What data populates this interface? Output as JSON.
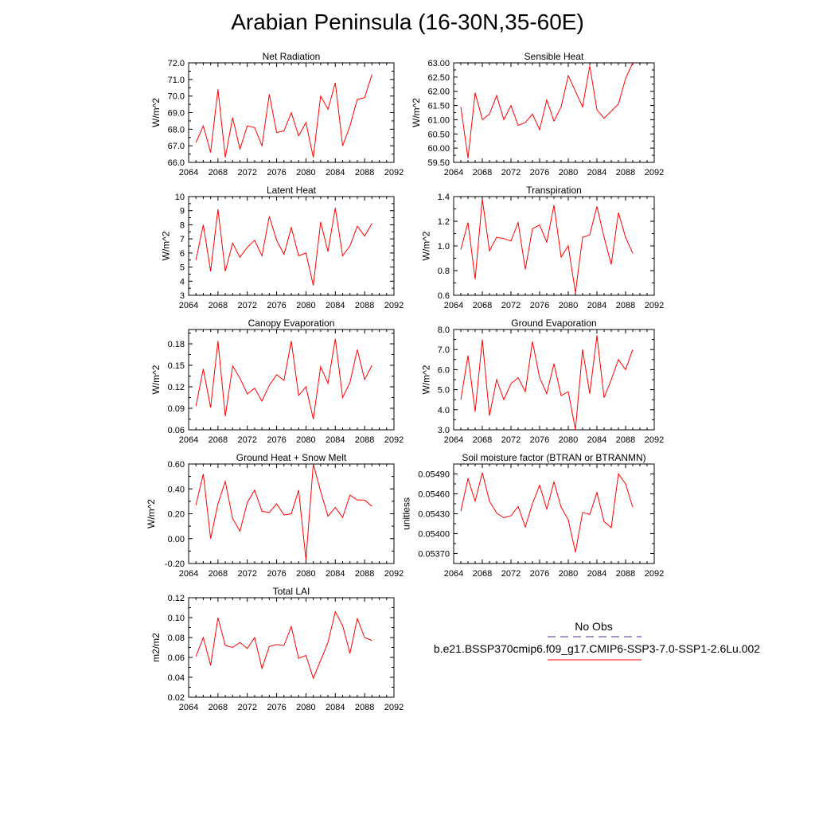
{
  "title": "Arabian Peninsula (16-30N,35-60E)",
  "legend": {
    "obs_label": "No Obs",
    "obs_color": "#3333aa",
    "run_label": "b.e21.BSSP370cmip6.f09_g17.CMIP6-SSP3-7.0-SSP1-2.6Lu.002",
    "run_color": "#ff0000"
  },
  "chart_data": [
    {
      "type": "line",
      "title": "Net Radiation",
      "ylabel": "W/m^2",
      "xlim": [
        2064,
        2092
      ],
      "xticks": [
        "2064",
        "2068",
        "2072",
        "2076",
        "2080",
        "2084",
        "2088",
        "2092"
      ],
      "ylim": [
        66.0,
        72.0
      ],
      "yticks": [
        "66.0",
        "67.0",
        "68.0",
        "69.0",
        "70.0",
        "71.0",
        "72.0"
      ],
      "x": [
        2065,
        2066,
        2067,
        2068,
        2069,
        2070,
        2071,
        2072,
        2073,
        2074,
        2075,
        2076,
        2077,
        2078,
        2079,
        2080,
        2081,
        2082,
        2083,
        2084,
        2085,
        2086,
        2087,
        2088,
        2089
      ],
      "series": [
        {
          "color": "#ff0000",
          "values": [
            67.2,
            68.2,
            66.6,
            70.4,
            66.3,
            68.7,
            66.8,
            68.2,
            68.1,
            67.0,
            70.1,
            67.8,
            67.9,
            69.0,
            67.6,
            68.4,
            66.3,
            70.0,
            69.2,
            70.8,
            67.0,
            68.2,
            69.8,
            69.9,
            71.3
          ]
        }
      ]
    },
    {
      "type": "line",
      "title": "Sensible Heat",
      "ylabel": "W/m^2",
      "xlim": [
        2064,
        2092
      ],
      "xticks": [
        "2064",
        "2068",
        "2072",
        "2076",
        "2080",
        "2084",
        "2088",
        "2092"
      ],
      "ylim": [
        59.5,
        63.0
      ],
      "yticks": [
        "59.50",
        "60.00",
        "60.50",
        "61.00",
        "61.50",
        "62.00",
        "62.50",
        "63.00"
      ],
      "x": [
        2065,
        2066,
        2067,
        2068,
        2069,
        2070,
        2071,
        2072,
        2073,
        2074,
        2075,
        2076,
        2077,
        2078,
        2079,
        2080,
        2081,
        2082,
        2083,
        2084,
        2085,
        2086,
        2087,
        2088,
        2089
      ],
      "series": [
        {
          "color": "#ff0000",
          "values": [
            61.45,
            59.65,
            61.95,
            61.0,
            61.2,
            61.85,
            61.0,
            61.5,
            60.8,
            60.9,
            61.2,
            60.65,
            61.7,
            60.95,
            61.45,
            62.55,
            62.0,
            61.45,
            62.9,
            61.35,
            61.05,
            61.3,
            61.55,
            62.45,
            63.0
          ]
        }
      ]
    },
    {
      "type": "line",
      "title": "Latent Heat",
      "ylabel": "W/m^2",
      "xlim": [
        2064,
        2092
      ],
      "xticks": [
        "2064",
        "2068",
        "2072",
        "2076",
        "2080",
        "2084",
        "2088",
        "2092"
      ],
      "ylim": [
        3,
        10
      ],
      "yticks": [
        "3",
        "4",
        "5",
        "6",
        "7",
        "8",
        "9",
        "10"
      ],
      "x": [
        2065,
        2066,
        2067,
        2068,
        2069,
        2070,
        2071,
        2072,
        2073,
        2074,
        2075,
        2076,
        2077,
        2078,
        2079,
        2080,
        2081,
        2082,
        2083,
        2084,
        2085,
        2086,
        2087,
        2088,
        2089
      ],
      "series": [
        {
          "color": "#ff0000",
          "values": [
            5.5,
            8.0,
            4.7,
            9.1,
            4.7,
            6.7,
            5.7,
            6.4,
            6.9,
            5.8,
            8.6,
            6.9,
            5.9,
            7.8,
            5.8,
            6.0,
            3.7,
            8.2,
            6.1,
            9.2,
            5.8,
            6.5,
            7.9,
            7.2,
            8.1
          ]
        }
      ]
    },
    {
      "type": "line",
      "title": "Transpiration",
      "ylabel": "W/m^2",
      "xlim": [
        2064,
        2092
      ],
      "xticks": [
        "2064",
        "2068",
        "2072",
        "2076",
        "2080",
        "2084",
        "2088",
        "2092"
      ],
      "ylim": [
        0.6,
        1.4
      ],
      "yticks": [
        "0.6",
        "0.8",
        "1.0",
        "1.2",
        "1.4"
      ],
      "x": [
        2065,
        2066,
        2067,
        2068,
        2069,
        2070,
        2071,
        2072,
        2073,
        2074,
        2075,
        2076,
        2077,
        2078,
        2079,
        2080,
        2081,
        2082,
        2083,
        2084,
        2085,
        2086,
        2087,
        2088,
        2089
      ],
      "series": [
        {
          "color": "#ff0000",
          "values": [
            0.97,
            1.19,
            0.73,
            1.38,
            0.96,
            1.07,
            1.06,
            1.04,
            1.19,
            0.81,
            1.14,
            1.17,
            1.03,
            1.33,
            0.91,
            1.0,
            0.62,
            1.07,
            1.09,
            1.32,
            1.07,
            0.85,
            1.27,
            1.07,
            0.94
          ]
        }
      ]
    },
    {
      "type": "line",
      "title": "Canopy Evaporation",
      "ylabel": "W/m^2",
      "xlim": [
        2064,
        2092
      ],
      "xticks": [
        "2064",
        "2068",
        "2072",
        "2076",
        "2080",
        "2084",
        "2088",
        "2092"
      ],
      "ylim": [
        0.06,
        0.2
      ],
      "yticks": [
        "0.06",
        "0.09",
        "0.12",
        "0.15",
        "0.18"
      ],
      "x": [
        2065,
        2066,
        2067,
        2068,
        2069,
        2070,
        2071,
        2072,
        2073,
        2074,
        2075,
        2076,
        2077,
        2078,
        2079,
        2080,
        2081,
        2082,
        2083,
        2084,
        2085,
        2086,
        2087,
        2088,
        2089
      ],
      "series": [
        {
          "color": "#ff0000",
          "values": [
            0.093,
            0.145,
            0.091,
            0.184,
            0.079,
            0.149,
            0.132,
            0.11,
            0.118,
            0.1,
            0.122,
            0.137,
            0.129,
            0.184,
            0.108,
            0.12,
            0.075,
            0.148,
            0.125,
            0.187,
            0.105,
            0.126,
            0.172,
            0.13,
            0.15
          ]
        }
      ]
    },
    {
      "type": "line",
      "title": "Ground Evaporation",
      "ylabel": "W/m^2",
      "xlim": [
        2064,
        2092
      ],
      "xticks": [
        "2064",
        "2068",
        "2072",
        "2076",
        "2080",
        "2084",
        "2088",
        "2092"
      ],
      "ylim": [
        3.0,
        8.0
      ],
      "yticks": [
        "3.0",
        "4.0",
        "5.0",
        "6.0",
        "7.0",
        "8.0"
      ],
      "x": [
        2065,
        2066,
        2067,
        2068,
        2069,
        2070,
        2071,
        2072,
        2073,
        2074,
        2075,
        2076,
        2077,
        2078,
        2079,
        2080,
        2081,
        2082,
        2083,
        2084,
        2085,
        2086,
        2087,
        2088,
        2089
      ],
      "series": [
        {
          "color": "#ff0000",
          "values": [
            4.5,
            6.7,
            3.9,
            7.5,
            3.7,
            5.5,
            4.5,
            5.3,
            5.6,
            4.9,
            7.4,
            5.6,
            4.8,
            6.3,
            4.7,
            4.9,
            3.0,
            7.0,
            4.8,
            7.7,
            4.6,
            5.5,
            6.5,
            6.0,
            7.0
          ]
        }
      ]
    },
    {
      "type": "line",
      "title": "Ground Heat + Snow Melt",
      "ylabel": "W/m^2",
      "xlim": [
        2064,
        2092
      ],
      "xticks": [
        "2064",
        "2068",
        "2072",
        "2076",
        "2080",
        "2084",
        "2088",
        "2092"
      ],
      "ylim": [
        -0.2,
        0.6
      ],
      "yticks": [
        "-0.20",
        "0.00",
        "0.20",
        "0.40",
        "0.60"
      ],
      "x": [
        2065,
        2066,
        2067,
        2068,
        2069,
        2070,
        2071,
        2072,
        2073,
        2074,
        2075,
        2076,
        2077,
        2078,
        2079,
        2080,
        2081,
        2082,
        2083,
        2084,
        2085,
        2086,
        2087,
        2088,
        2089
      ],
      "series": [
        {
          "color": "#ff0000",
          "values": [
            0.27,
            0.52,
            0.0,
            0.28,
            0.46,
            0.16,
            0.06,
            0.29,
            0.39,
            0.22,
            0.21,
            0.28,
            0.19,
            0.2,
            0.39,
            -0.17,
            0.6,
            0.38,
            0.18,
            0.25,
            0.17,
            0.35,
            0.31,
            0.31,
            0.26
          ]
        }
      ]
    },
    {
      "type": "line",
      "title": "Soil moisture factor (BTRAN or BTRANMN)",
      "ylabel": "unitless",
      "xlim": [
        2064,
        2092
      ],
      "xticks": [
        "2064",
        "2068",
        "2072",
        "2076",
        "2080",
        "2084",
        "2088",
        "2092"
      ],
      "ylim": [
        0.05355,
        0.05505
      ],
      "yticks": [
        "0.05370",
        "0.05400",
        "0.05430",
        "0.05460",
        "0.05490"
      ],
      "x": [
        2065,
        2066,
        2067,
        2068,
        2069,
        2070,
        2071,
        2072,
        2073,
        2074,
        2075,
        2076,
        2077,
        2078,
        2079,
        2080,
        2081,
        2082,
        2083,
        2084,
        2085,
        2086,
        2087,
        2088,
        2089
      ],
      "series": [
        {
          "color": "#ff0000",
          "values": [
            0.05434,
            0.05483,
            0.05449,
            0.05492,
            0.05449,
            0.05431,
            0.05424,
            0.05427,
            0.05441,
            0.0541,
            0.05445,
            0.05473,
            0.05437,
            0.05478,
            0.0544,
            0.05421,
            0.05372,
            0.05432,
            0.05429,
            0.05462,
            0.05418,
            0.05409,
            0.0549,
            0.05475,
            0.0544
          ]
        }
      ]
    },
    {
      "type": "line",
      "title": "Total LAI",
      "ylabel": "m2/m2",
      "xlim": [
        2064,
        2092
      ],
      "xticks": [
        "2064",
        "2068",
        "2072",
        "2076",
        "2080",
        "2084",
        "2088",
        "2092"
      ],
      "ylim": [
        0.02,
        0.12
      ],
      "yticks": [
        "0.02",
        "0.04",
        "0.06",
        "0.08",
        "0.10",
        "0.12"
      ],
      "x": [
        2065,
        2066,
        2067,
        2068,
        2069,
        2070,
        2071,
        2072,
        2073,
        2074,
        2075,
        2076,
        2077,
        2078,
        2079,
        2080,
        2081,
        2082,
        2083,
        2084,
        2085,
        2086,
        2087,
        2088,
        2089
      ],
      "series": [
        {
          "color": "#ff0000",
          "values": [
            0.061,
            0.08,
            0.052,
            0.1,
            0.072,
            0.07,
            0.075,
            0.069,
            0.08,
            0.049,
            0.071,
            0.073,
            0.072,
            0.091,
            0.059,
            0.062,
            0.039,
            0.057,
            0.075,
            0.106,
            0.092,
            0.064,
            0.099,
            0.08,
            0.077
          ]
        }
      ]
    }
  ]
}
